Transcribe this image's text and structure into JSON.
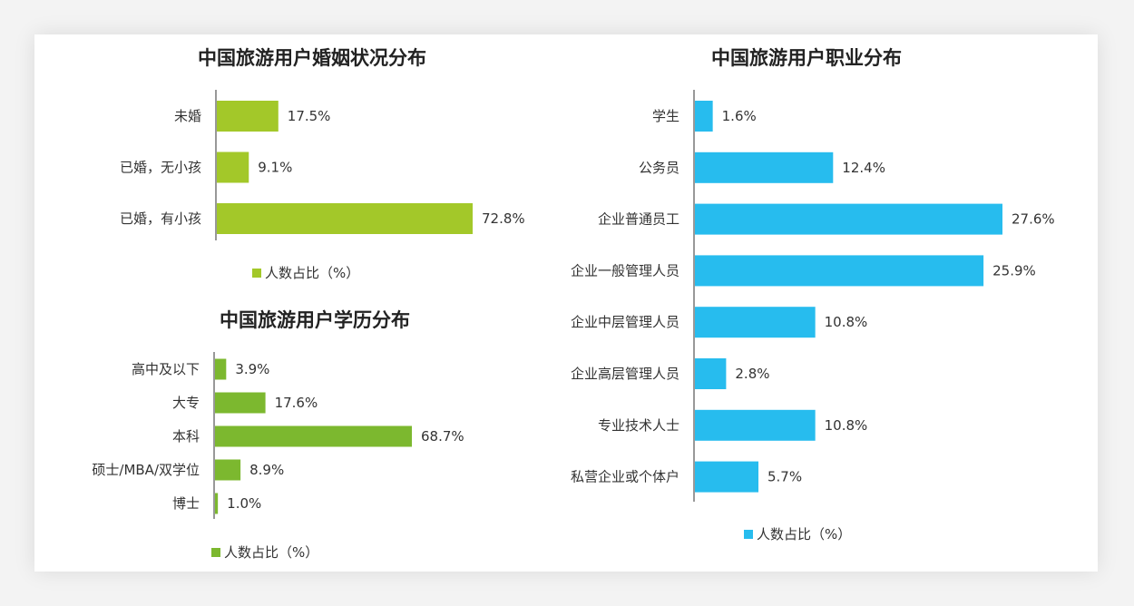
{
  "chart_data": [
    {
      "type": "bar",
      "orientation": "horizontal",
      "title": "中国旅游用户婚姻状况分布",
      "categories": [
        "未婚",
        "已婚，无小孩",
        "已婚，有小孩"
      ],
      "series": [
        {
          "name": "人数占比（%）",
          "values": [
            17.5,
            9.1,
            72.8
          ]
        }
      ],
      "value_labels": [
        "17.5%",
        "9.1%",
        "72.8%"
      ],
      "legend": "bottom",
      "color": "#a3c829",
      "grid": false
    },
    {
      "type": "bar",
      "orientation": "horizontal",
      "title": "中国旅游用户学历分布",
      "categories": [
        "高中及以下",
        "大专",
        "本科",
        "硕士/MBA/双学位",
        "博士"
      ],
      "series": [
        {
          "name": "人数占比（%）",
          "values": [
            3.9,
            17.6,
            68.7,
            8.9,
            1.0
          ]
        }
      ],
      "value_labels": [
        "3.9%",
        "17.6%",
        "68.7%",
        "8.9%",
        "1.0%"
      ],
      "legend": "bottom",
      "color": "#7cb82f",
      "grid": false
    },
    {
      "type": "bar",
      "orientation": "horizontal",
      "title": "中国旅游用户职业分布",
      "categories": [
        "学生",
        "公务员",
        "企业普通员工",
        "企业一般管理人员",
        "企业中层管理人员",
        "企业高层管理人员",
        "专业技术人士",
        "私营企业或个体户"
      ],
      "series": [
        {
          "name": "人数占比（%）",
          "values": [
            1.6,
            12.4,
            27.6,
            25.9,
            10.8,
            2.8,
            10.8,
            5.7
          ]
        }
      ],
      "value_labels": [
        "1.6%",
        "12.4%",
        "27.6%",
        "25.9%",
        "10.8%",
        "2.8%",
        "10.8%",
        "5.7%"
      ],
      "legend": "bottom",
      "color": "#27bcee",
      "grid": false
    }
  ]
}
